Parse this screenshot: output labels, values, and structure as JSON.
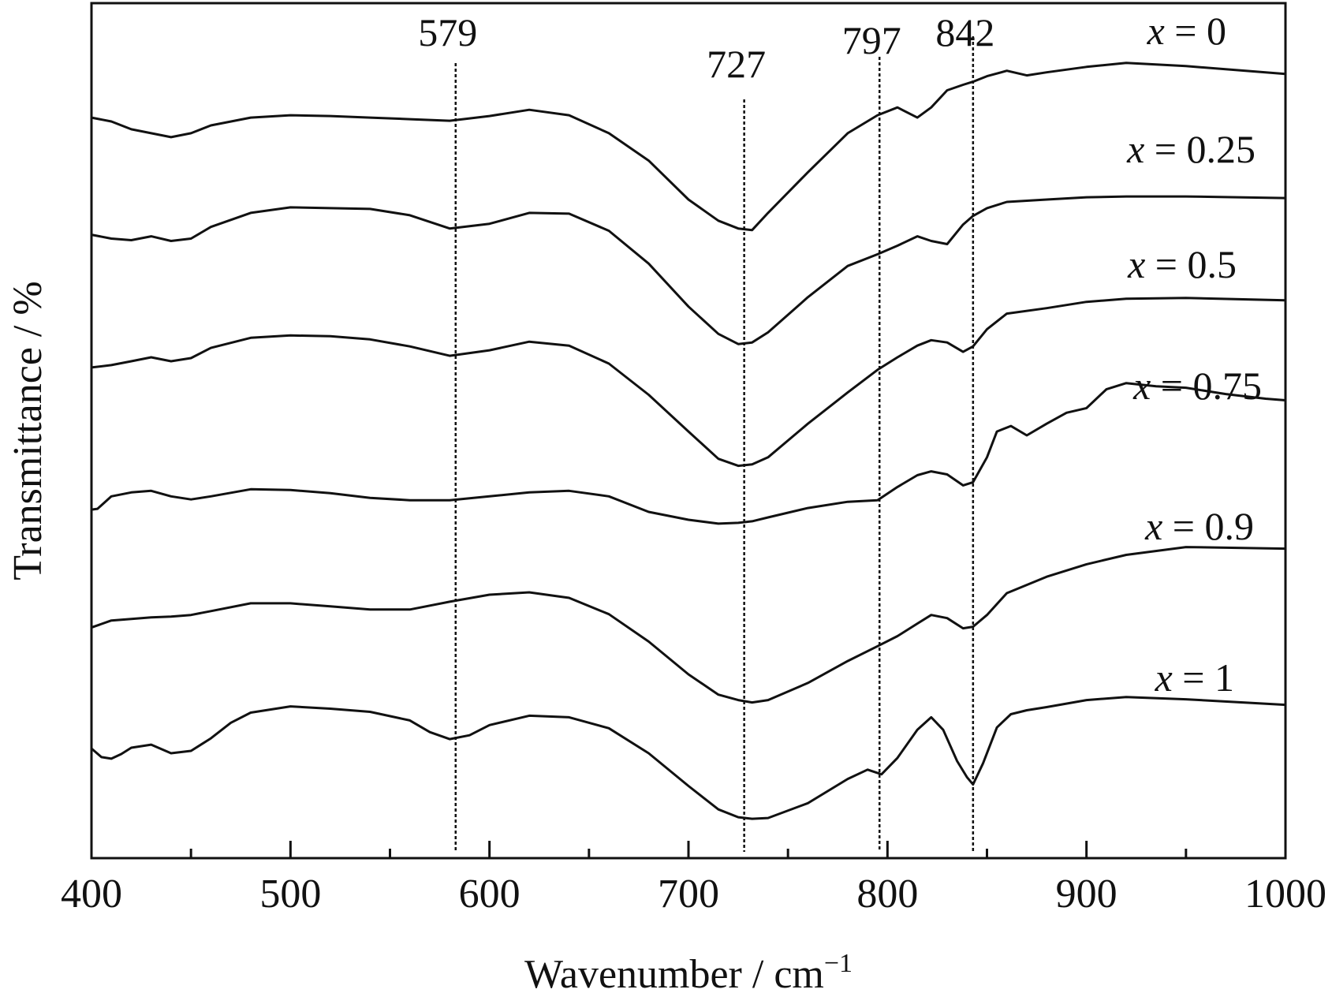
{
  "chart_data": {
    "type": "line",
    "xlabel": "Wavenumber / cm",
    "xlabel_superscript": "−1",
    "ylabel": "Transmittance / %",
    "xlim": [
      400,
      1000
    ],
    "x_major_ticks": [
      400,
      500,
      600,
      700,
      800,
      900,
      1000
    ],
    "x_tick_labels": [
      "400",
      "500",
      "600",
      "700",
      "800",
      "900",
      "1000"
    ],
    "x_minor_ticks": [
      450,
      550,
      650,
      750,
      850,
      950
    ],
    "ylim": [
      0,
      100
    ],
    "y_ticks_labeled": false,
    "grid": false,
    "legend": "inline labels at right of each curve",
    "peak_markers": [
      {
        "label": "579",
        "x": 583
      },
      {
        "label": "727",
        "x": 728
      },
      {
        "label": "797",
        "x": 796
      },
      {
        "label": "842",
        "x": 843
      }
    ],
    "series": [
      {
        "label_var": "x",
        "label_rest": " = 0",
        "x": [
          400,
          410,
          420,
          430,
          440,
          450,
          460,
          480,
          500,
          520,
          540,
          560,
          580,
          600,
          620,
          640,
          660,
          680,
          700,
          715,
          725,
          732,
          740,
          760,
          780,
          795,
          805,
          815,
          822,
          830,
          838,
          843,
          850,
          860,
          870,
          880,
          900,
          920,
          950,
          980,
          1000
        ],
        "y": [
          91,
          90.5,
          89.5,
          89,
          88.5,
          89,
          90,
          91,
          91.3,
          91.2,
          91,
          90.8,
          90.6,
          91.2,
          92,
          91.3,
          89,
          85.5,
          80.5,
          77.8,
          76.8,
          76.6,
          78.8,
          84,
          89,
          91.3,
          92.3,
          91,
          92.3,
          94.5,
          95.2,
          95.6,
          96.3,
          97,
          96.4,
          96.8,
          97.5,
          98,
          97.6,
          97,
          96.6
        ]
      },
      {
        "label_var": "x",
        "label_rest": " = 0.25",
        "x": [
          400,
          410,
          420,
          430,
          440,
          450,
          460,
          480,
          500,
          520,
          540,
          560,
          580,
          600,
          620,
          640,
          660,
          680,
          700,
          715,
          725,
          732,
          740,
          760,
          780,
          795,
          805,
          815,
          822,
          830,
          838,
          843,
          850,
          860,
          880,
          900,
          920,
          950,
          1000
        ],
        "y": [
          76,
          75.5,
          75.3,
          75.8,
          75.2,
          75.5,
          77,
          78.8,
          79.5,
          79.4,
          79.3,
          78.5,
          76.8,
          77.4,
          78.8,
          78.7,
          76.5,
          72.3,
          66.8,
          63.3,
          62,
          62.2,
          63.5,
          68,
          72,
          73.5,
          74.6,
          75.8,
          75.2,
          74.8,
          77.3,
          78.4,
          79.4,
          80.2,
          80.5,
          80.8,
          80.9,
          80.9,
          80.7
        ]
      },
      {
        "label_var": "x",
        "label_rest": " = 0.5",
        "x": [
          400,
          410,
          420,
          430,
          440,
          450,
          460,
          480,
          500,
          520,
          540,
          560,
          580,
          600,
          620,
          640,
          660,
          680,
          700,
          715,
          725,
          732,
          740,
          760,
          780,
          795,
          805,
          815,
          822,
          830,
          838,
          843,
          850,
          860,
          880,
          900,
          920,
          950,
          1000
        ],
        "y": [
          59,
          59.3,
          59.8,
          60.3,
          59.8,
          60.2,
          61.5,
          62.8,
          63.1,
          63,
          62.6,
          61.7,
          60.5,
          61.2,
          62.3,
          61.8,
          59.5,
          55.5,
          50.8,
          47.3,
          46.4,
          46.6,
          47.5,
          51.8,
          55.8,
          58.7,
          60.3,
          61.8,
          62.5,
          62.2,
          61,
          61.7,
          63.9,
          65.9,
          66.6,
          67.4,
          67.8,
          67.9,
          67.6
        ]
      },
      {
        "label_var": "x",
        "label_rest": " = 0.75",
        "x": [
          400,
          403,
          410,
          420,
          430,
          440,
          450,
          460,
          480,
          500,
          520,
          540,
          560,
          580,
          600,
          620,
          640,
          660,
          680,
          700,
          715,
          725,
          732,
          740,
          760,
          780,
          795,
          805,
          815,
          822,
          830,
          838,
          843,
          850,
          855,
          862,
          870,
          880,
          890,
          900,
          910,
          920,
          935,
          950,
          970,
          990,
          1000
        ],
        "y": [
          40.8,
          40.9,
          42.5,
          43,
          43.2,
          42.5,
          42.1,
          42.5,
          43.4,
          43.3,
          42.9,
          42.3,
          42,
          42,
          42.5,
          43,
          43.2,
          42.5,
          40.5,
          39.5,
          39,
          39.1,
          39.3,
          39.8,
          41,
          41.8,
          42,
          43.7,
          45.2,
          45.7,
          45.3,
          43.9,
          44.3,
          47.5,
          50.8,
          51.5,
          50.3,
          51.8,
          53.2,
          53.8,
          56.2,
          57,
          56.6,
          56.4,
          55.6,
          55,
          54.8
        ]
      },
      {
        "label_var": "x",
        "label_rest": " = 0.9",
        "x": [
          400,
          410,
          420,
          430,
          440,
          450,
          460,
          480,
          500,
          520,
          540,
          560,
          580,
          600,
          620,
          640,
          660,
          680,
          700,
          715,
          725,
          732,
          740,
          760,
          780,
          795,
          805,
          815,
          822,
          830,
          838,
          843,
          850,
          860,
          880,
          900,
          920,
          950,
          1000
        ],
        "y": [
          25.7,
          26.6,
          26.8,
          27,
          27.1,
          27.3,
          27.8,
          28.8,
          28.8,
          28.4,
          28,
          28,
          29,
          29.9,
          30.2,
          29.5,
          27.4,
          23.9,
          19.7,
          17.1,
          16.4,
          16.1,
          16.4,
          18.6,
          21.4,
          23.3,
          24.6,
          26.2,
          27.3,
          26.9,
          25.6,
          25.8,
          27.3,
          30.1,
          32.2,
          33.8,
          35,
          36,
          35.8
        ]
      },
      {
        "label_var": "x",
        "label_rest": " = 1",
        "x": [
          400,
          405,
          410,
          415,
          420,
          430,
          440,
          450,
          460,
          470,
          480,
          500,
          520,
          540,
          560,
          570,
          580,
          590,
          600,
          620,
          640,
          660,
          680,
          700,
          715,
          725,
          732,
          740,
          760,
          780,
          790,
          797,
          805,
          815,
          822,
          828,
          835,
          840,
          843,
          848,
          855,
          862,
          870,
          880,
          900,
          920,
          950,
          1000
        ],
        "y": [
          10.2,
          9.1,
          8.9,
          9.5,
          10.3,
          10.7,
          9.6,
          9.9,
          11.5,
          13.5,
          14.8,
          15.6,
          15.3,
          14.9,
          13.8,
          12.3,
          11.4,
          11.9,
          13.2,
          14.4,
          14.2,
          12.8,
          9.6,
          5.4,
          2.4,
          1.4,
          1.2,
          1.3,
          3.2,
          6.3,
          7.5,
          6.9,
          9,
          12.6,
          14.2,
          12.6,
          8.6,
          6.5,
          5.6,
          8.3,
          12.9,
          14.6,
          15.1,
          15.5,
          16.4,
          16.8,
          16.5,
          15.8
        ]
      }
    ]
  }
}
